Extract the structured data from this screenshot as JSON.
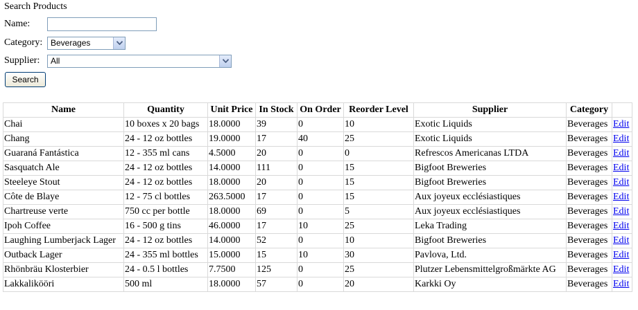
{
  "title": "Search Products",
  "form": {
    "name_label": "Name:",
    "name_value": "",
    "category_label": "Category:",
    "category_value": "Beverages",
    "supplier_label": "Supplier:",
    "supplier_value": "All",
    "search_button": "Search"
  },
  "table": {
    "headers": [
      "Name",
      "Quantity",
      "Unit Price",
      "In Stock",
      "On Order",
      "Reorder Level",
      "Supplier",
      "Category",
      ""
    ],
    "edit_label": "Edit",
    "rows": [
      {
        "name": "Chai",
        "quantity": "10 boxes x 20 bags",
        "unit_price": "18.0000",
        "in_stock": "39",
        "on_order": "0",
        "reorder_level": "10",
        "supplier": "Exotic Liquids",
        "category": "Beverages"
      },
      {
        "name": "Chang",
        "quantity": "24 - 12 oz bottles",
        "unit_price": "19.0000",
        "in_stock": "17",
        "on_order": "40",
        "reorder_level": "25",
        "supplier": "Exotic Liquids",
        "category": "Beverages"
      },
      {
        "name": "Guaraná Fantástica",
        "quantity": "12 - 355 ml cans",
        "unit_price": "4.5000",
        "in_stock": "20",
        "on_order": "0",
        "reorder_level": "0",
        "supplier": "Refrescos Americanas LTDA",
        "category": "Beverages"
      },
      {
        "name": "Sasquatch Ale",
        "quantity": "24 - 12 oz bottles",
        "unit_price": "14.0000",
        "in_stock": "111",
        "on_order": "0",
        "reorder_level": "15",
        "supplier": "Bigfoot Breweries",
        "category": "Beverages"
      },
      {
        "name": "Steeleye Stout",
        "quantity": "24 - 12 oz bottles",
        "unit_price": "18.0000",
        "in_stock": "20",
        "on_order": "0",
        "reorder_level": "15",
        "supplier": "Bigfoot Breweries",
        "category": "Beverages"
      },
      {
        "name": "Côte de Blaye",
        "quantity": "12 - 75 cl bottles",
        "unit_price": "263.5000",
        "in_stock": "17",
        "on_order": "0",
        "reorder_level": "15",
        "supplier": "Aux joyeux ecclésiastiques",
        "category": "Beverages"
      },
      {
        "name": "Chartreuse verte",
        "quantity": "750 cc per bottle",
        "unit_price": "18.0000",
        "in_stock": "69",
        "on_order": "0",
        "reorder_level": "5",
        "supplier": "Aux joyeux ecclésiastiques",
        "category": "Beverages"
      },
      {
        "name": "Ipoh Coffee",
        "quantity": "16 - 500 g tins",
        "unit_price": "46.0000",
        "in_stock": "17",
        "on_order": "10",
        "reorder_level": "25",
        "supplier": "Leka Trading",
        "category": "Beverages"
      },
      {
        "name": "Laughing Lumberjack Lager",
        "quantity": "24 - 12 oz bottles",
        "unit_price": "14.0000",
        "in_stock": "52",
        "on_order": "0",
        "reorder_level": "10",
        "supplier": "Bigfoot Breweries",
        "category": "Beverages"
      },
      {
        "name": "Outback Lager",
        "quantity": "24 - 355 ml bottles",
        "unit_price": "15.0000",
        "in_stock": "15",
        "on_order": "10",
        "reorder_level": "30",
        "supplier": "Pavlova, Ltd.",
        "category": "Beverages"
      },
      {
        "name": "Rhönbräu Klosterbier",
        "quantity": "24 - 0.5 l bottles",
        "unit_price": "7.7500",
        "in_stock": "125",
        "on_order": "0",
        "reorder_level": "25",
        "supplier": "Plutzer Lebensmittelgroßmärkte AG",
        "category": "Beverages"
      },
      {
        "name": "Lakkalikööri",
        "quantity": "500 ml",
        "unit_price": "18.0000",
        "in_stock": "57",
        "on_order": "0",
        "reorder_level": "20",
        "supplier": "Karkki Oy",
        "category": "Beverages"
      }
    ]
  },
  "icons": {
    "dropdown": "chevron-down-icon"
  },
  "colors": {
    "link": "#0000ee",
    "grid_border": "#d9d9d9",
    "input_border": "#7f9db9"
  }
}
